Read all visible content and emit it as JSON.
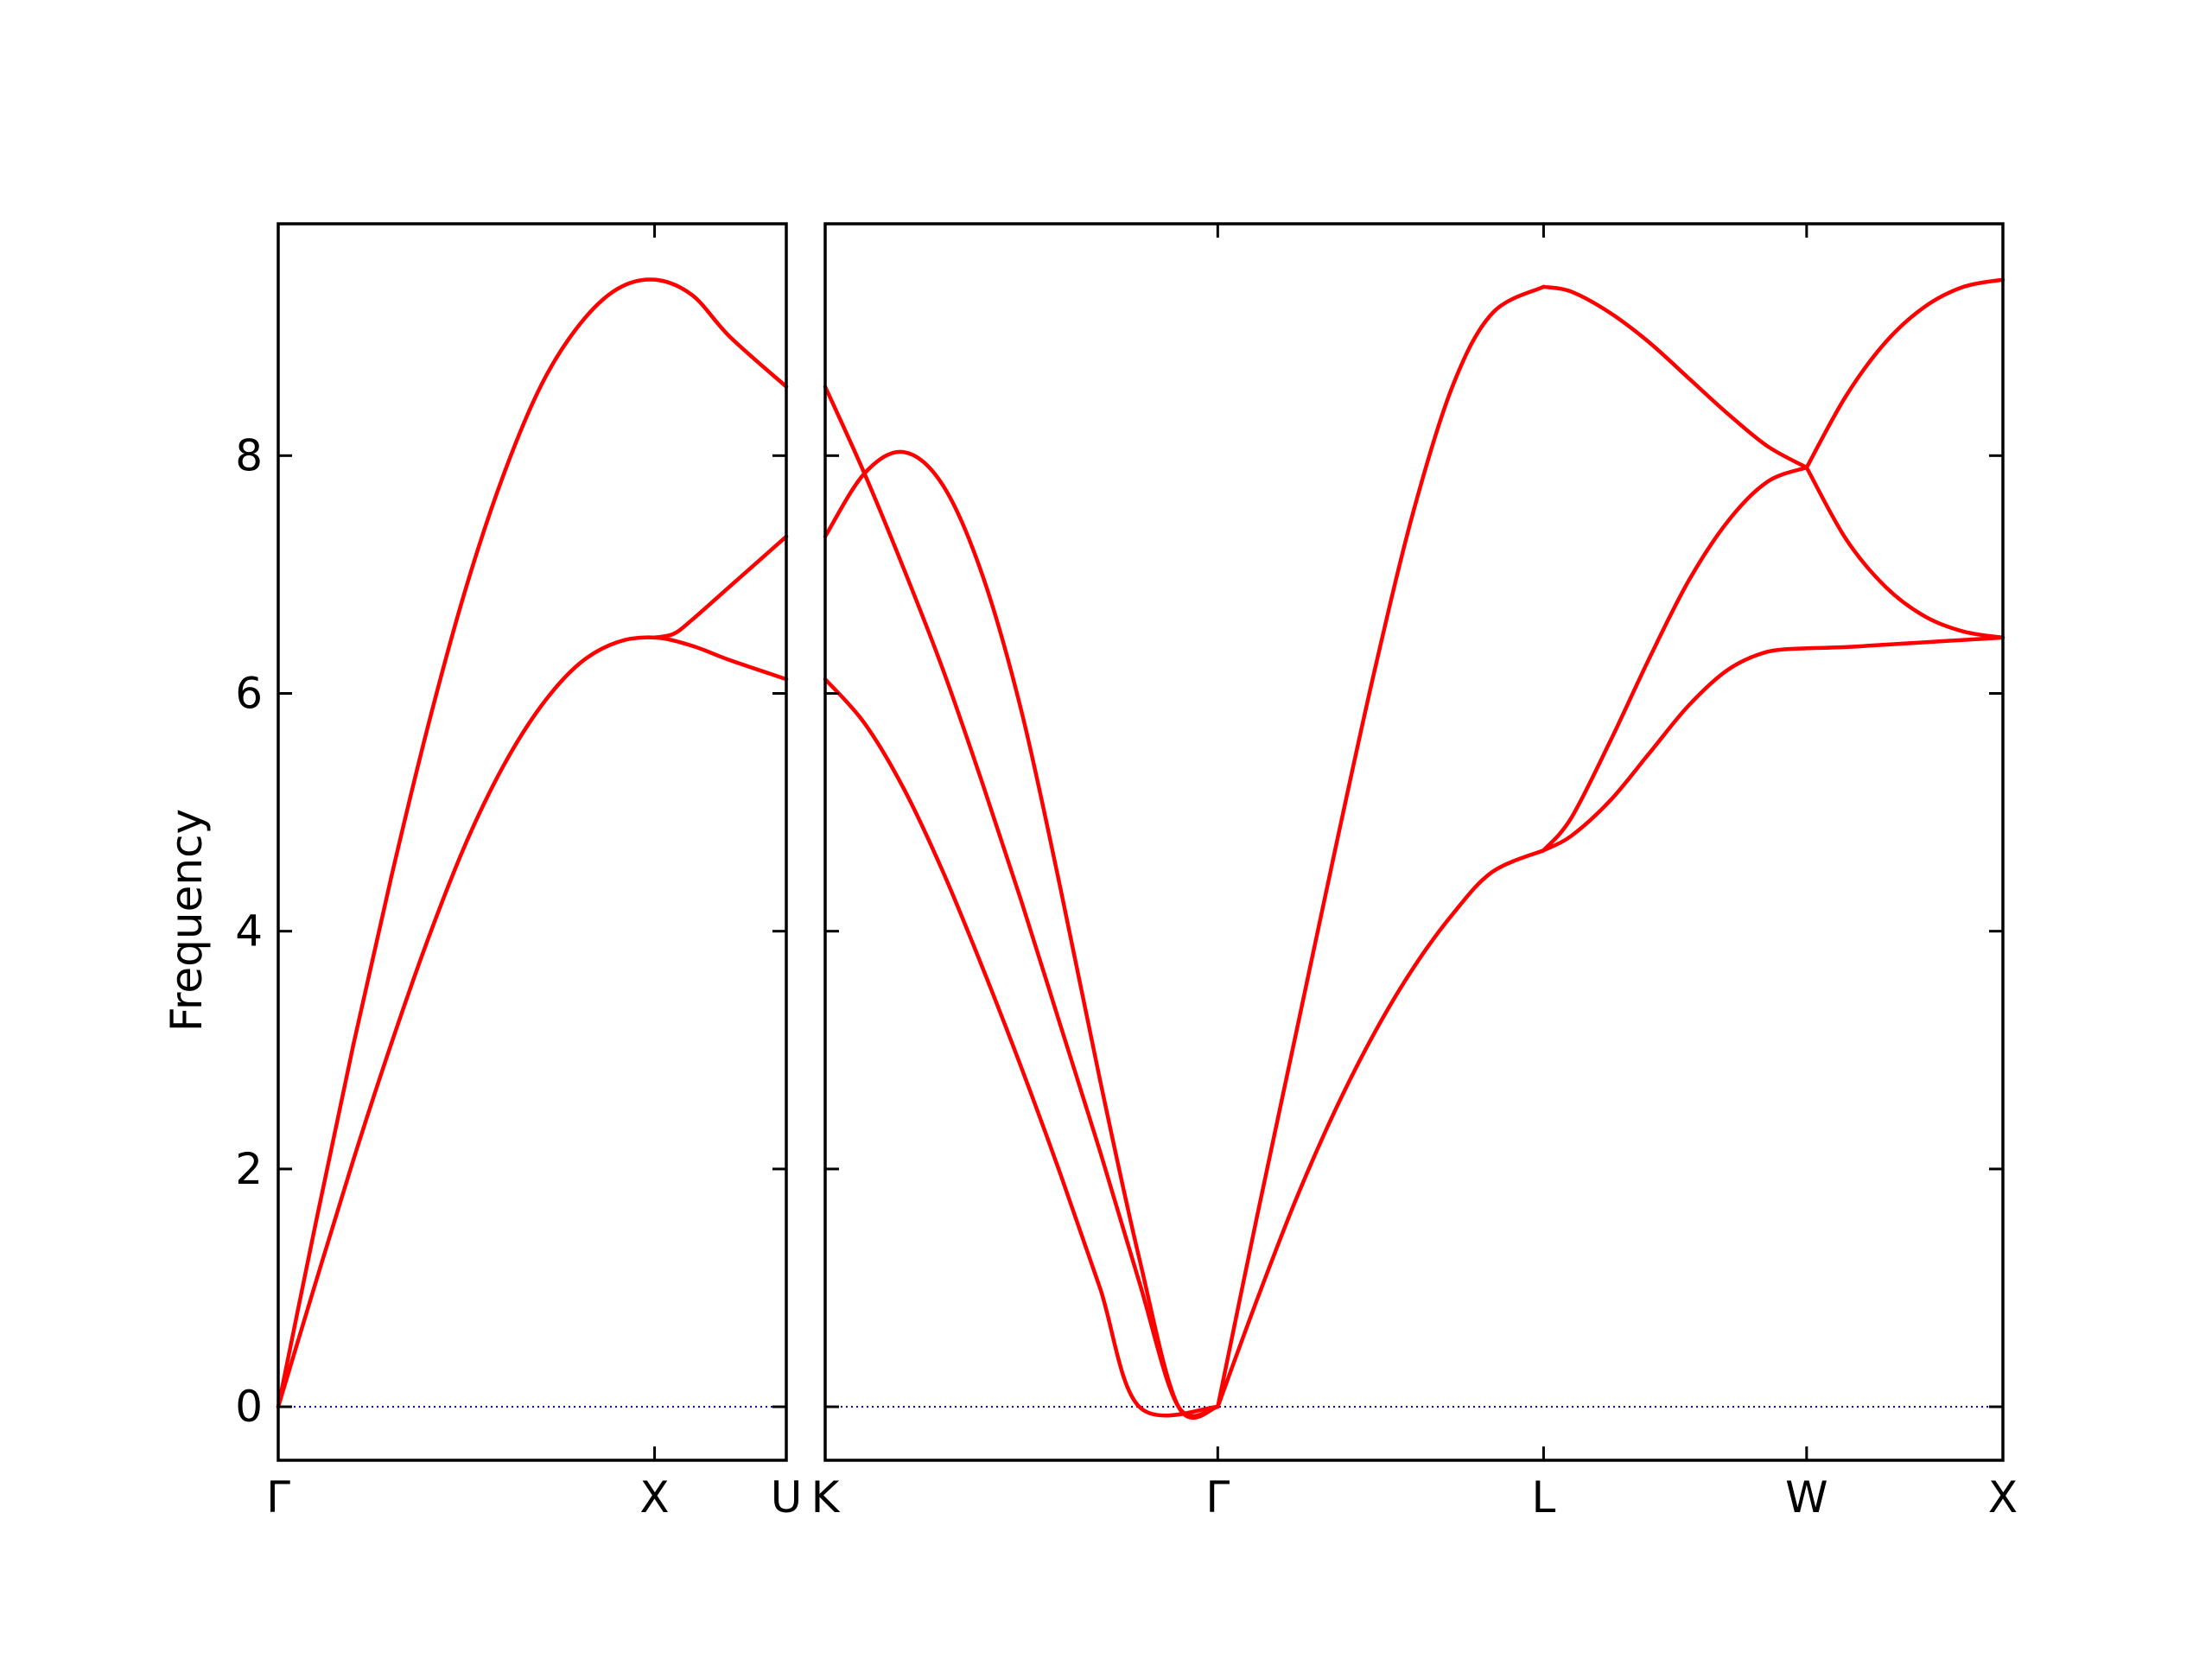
{
  "chart_data": {
    "type": "line",
    "ylabel": "Frequency",
    "ylim": [
      -0.45,
      9.95
    ],
    "yticks": [
      0,
      2,
      4,
      6,
      8
    ],
    "band_color": "#ff0000",
    "zero_line_color": "#0000cc",
    "panels": [
      {
        "xlim": [
          0,
          1.35
        ],
        "xticks": [
          {
            "pos": 0,
            "label": "Γ"
          },
          {
            "pos": 1.0,
            "label": "X"
          },
          {
            "pos": 1.35,
            "label": "U"
          }
        ],
        "branches": [
          {
            "name": "transverse",
            "x": [
              0,
              0.1,
              0.2,
              0.3,
              0.4,
              0.5,
              0.6,
              0.7,
              0.8,
              0.9,
              1.0,
              1.1,
              1.2,
              1.35
            ],
            "y": [
              0,
              1.05,
              2.08,
              3.05,
              3.95,
              4.75,
              5.4,
              5.9,
              6.25,
              6.43,
              6.47,
              6.4,
              6.28,
              6.12
            ]
          },
          {
            "name": "longitudinal",
            "x": [
              0,
              0.1,
              0.2,
              0.3,
              0.4,
              0.5,
              0.6,
              0.7,
              0.8,
              0.9,
              1.0,
              1.1,
              1.2,
              1.35
            ],
            "y": [
              0,
              1.55,
              3.05,
              4.45,
              5.75,
              6.9,
              7.85,
              8.6,
              9.1,
              9.4,
              9.48,
              9.35,
              9.0,
              8.58
            ]
          },
          {
            "name": "upper-branch",
            "x": [
              1.0,
              1.05,
              1.1,
              1.2,
              1.35
            ],
            "y": [
              6.47,
              6.5,
              6.62,
              6.9,
              7.32
            ]
          }
        ]
      },
      {
        "xlim": [
          0,
          3.0
        ],
        "xticks": [
          {
            "pos": 0,
            "label": "K"
          },
          {
            "pos": 1.0,
            "label": "Γ"
          },
          {
            "pos": 1.83,
            "label": "L"
          },
          {
            "pos": 2.5,
            "label": "W"
          },
          {
            "pos": 3.0,
            "label": "X"
          }
        ],
        "branches": [
          {
            "name": "K-G-lower",
            "x": [
              0,
              0.1,
              0.2,
              0.3,
              0.4,
              0.5,
              0.6,
              0.7,
              0.8,
              0.9,
              1.0
            ],
            "y": [
              6.12,
              5.75,
              5.2,
              4.5,
              3.7,
              2.85,
              1.95,
              1.0,
              0.0,
              0.0,
              0.0
            ]
          },
          {
            "name": "K-G-middle",
            "x": [
              0,
              0.1,
              0.2,
              0.3,
              0.4,
              0.5,
              0.6,
              0.7,
              0.8,
              0.9,
              1.0
            ],
            "y": [
              8.58,
              7.85,
              7.05,
              6.2,
              5.25,
              4.25,
              3.2,
              2.15,
              1.05,
              0.0,
              0.0
            ]
          },
          {
            "name": "K-G-upper",
            "x": [
              0,
              0.1,
              0.2,
              0.3,
              0.4,
              0.5,
              0.6,
              0.7,
              0.8,
              0.9,
              1.0
            ],
            "y": [
              7.32,
              7.85,
              8.03,
              7.75,
              7.0,
              5.85,
              4.35,
              2.75,
              1.25,
              0.0,
              0.0
            ]
          },
          {
            "name": "G-L-transverse",
            "x": [
              1.0,
              1.1,
              1.2,
              1.3,
              1.4,
              1.5,
              1.6,
              1.7,
              1.83
            ],
            "y": [
              0,
              0.9,
              1.75,
              2.5,
              3.15,
              3.7,
              4.15,
              4.5,
              4.68
            ]
          },
          {
            "name": "G-L-longitudinal",
            "x": [
              1.0,
              1.1,
              1.2,
              1.3,
              1.4,
              1.5,
              1.6,
              1.7,
              1.83
            ],
            "y": [
              0,
              1.6,
              3.15,
              4.7,
              6.2,
              7.55,
              8.6,
              9.2,
              9.42
            ]
          },
          {
            "name": "L-W-upper",
            "x": [
              1.83,
              1.9,
              2.0,
              2.1,
              2.2,
              2.3,
              2.4,
              2.5
            ],
            "y": [
              9.42,
              9.38,
              9.2,
              8.95,
              8.65,
              8.35,
              8.08,
              7.9
            ]
          },
          {
            "name": "L-W-middle",
            "x": [
              1.83,
              1.9,
              2.0,
              2.1,
              2.2,
              2.3,
              2.4,
              2.5
            ],
            "y": [
              4.68,
              4.95,
              5.6,
              6.3,
              6.95,
              7.45,
              7.78,
              7.9
            ]
          },
          {
            "name": "L-W-lower",
            "x": [
              1.83,
              1.9,
              2.0,
              2.1,
              2.2,
              2.3,
              2.4,
              2.5
            ],
            "y": [
              4.68,
              4.8,
              5.1,
              5.5,
              5.9,
              6.2,
              6.35,
              6.38
            ]
          },
          {
            "name": "W-X-upper",
            "x": [
              2.5,
              2.6,
              2.7,
              2.8,
              2.9,
              3.0
            ],
            "y": [
              7.9,
              8.5,
              8.95,
              9.25,
              9.42,
              9.48
            ]
          },
          {
            "name": "W-X-middle",
            "x": [
              2.5,
              2.6,
              2.7,
              2.8,
              2.9,
              3.0
            ],
            "y": [
              7.9,
              7.3,
              6.9,
              6.65,
              6.52,
              6.47
            ]
          },
          {
            "name": "W-X-lower",
            "x": [
              2.5,
              2.6,
              2.7,
              2.8,
              2.9,
              3.0
            ],
            "y": [
              6.38,
              6.39,
              6.41,
              6.43,
              6.45,
              6.47
            ]
          }
        ]
      }
    ]
  }
}
